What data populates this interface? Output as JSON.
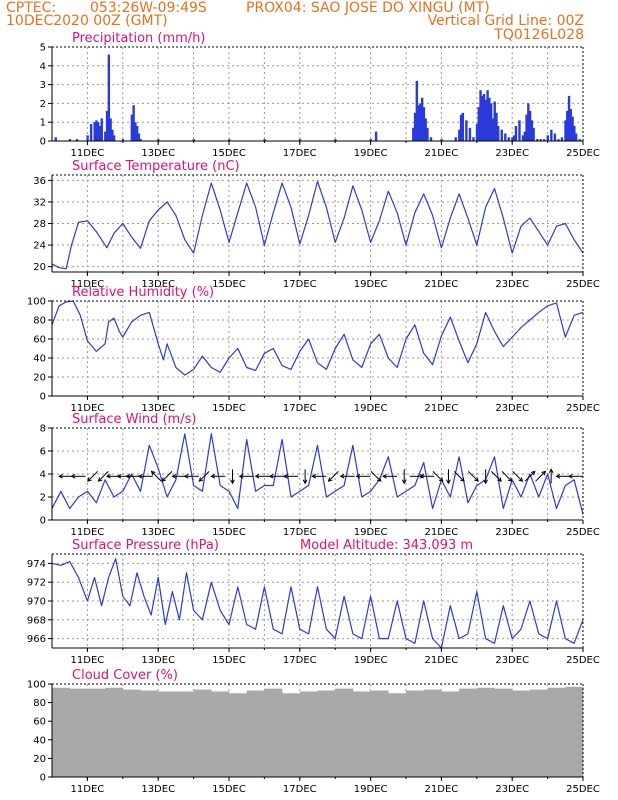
{
  "header": {
    "org": "CPTEC:",
    "coords": "053:26W-09:49S",
    "location": "PROX04: SAO JOSE DO XINGU (MT)",
    "date": "10DEC2020 00Z (GMT)",
    "grid_note": "Vertical Grid Line: 00Z",
    "model": "TQ0126L028"
  },
  "colors": {
    "header": "#e8701e",
    "title": "#e0107a",
    "line": "#2a3bd9",
    "bar": "#2a3bd9",
    "cloud": "#a9a9a9",
    "frame": "#000000",
    "grid": "#9a9a9a"
  },
  "x_axis": {
    "start_day": 10,
    "end_day": 25,
    "ticks": [
      {
        "day": 11,
        "label": "11DEC"
      },
      {
        "day": 13,
        "label": "13DEC"
      },
      {
        "day": 15,
        "label": "15DEC"
      },
      {
        "day": 17,
        "label": "17DEC"
      },
      {
        "day": 19,
        "label": "19DEC"
      },
      {
        "day": 21,
        "label": "21DEC"
      },
      {
        "day": 23,
        "label": "23DEC"
      },
      {
        "day": 25,
        "label": "25DEC"
      }
    ]
  },
  "chart_data": [
    {
      "type": "bar",
      "title": "Precipitation (mm/h)",
      "ylim": [
        0,
        5
      ],
      "yticks": [
        0,
        1,
        2,
        3,
        4,
        5
      ],
      "x": [
        10.1,
        10.5,
        10.7,
        11.0,
        11.1,
        11.2,
        11.25,
        11.3,
        11.35,
        11.4,
        11.5,
        11.55,
        11.6,
        11.65,
        11.7,
        11.75,
        12.0,
        12.25,
        12.3,
        12.35,
        12.4,
        12.45,
        12.5,
        13.0,
        14.0,
        15.0,
        16.0,
        17.0,
        18.0,
        19.0,
        19.15,
        20.2,
        20.25,
        20.3,
        20.35,
        20.4,
        20.45,
        20.5,
        20.55,
        20.6,
        20.7,
        21.0,
        21.4,
        21.5,
        21.55,
        21.6,
        21.7,
        21.8,
        21.9,
        22.0,
        22.05,
        22.1,
        22.15,
        22.2,
        22.25,
        22.3,
        22.35,
        22.4,
        22.45,
        22.5,
        22.55,
        22.6,
        22.7,
        22.8,
        22.9,
        23.0,
        23.05,
        23.1,
        23.2,
        23.3,
        23.35,
        23.4,
        23.45,
        23.5,
        23.55,
        23.6,
        23.7,
        23.8,
        23.9,
        24.0,
        24.1,
        24.2,
        24.3,
        24.4,
        24.5,
        24.55,
        24.6,
        24.65,
        24.7,
        24.75,
        24.8,
        24.9
      ],
      "values": [
        0.2,
        0.1,
        0.1,
        0.3,
        0.9,
        1.0,
        1.1,
        1.0,
        0.8,
        1.2,
        0.5,
        1.6,
        4.6,
        1.2,
        0.6,
        0.3,
        0.1,
        1.4,
        1.9,
        1.0,
        0.8,
        0.4,
        0.1,
        0.1,
        0.1,
        0.1,
        0.1,
        0.1,
        0.1,
        0.1,
        0.5,
        0.7,
        1.5,
        3.2,
        1.9,
        2.0,
        2.3,
        1.8,
        1.2,
        0.7,
        0.2,
        0.1,
        0.2,
        0.6,
        1.4,
        1.5,
        1.1,
        0.7,
        0.2,
        0.9,
        1.8,
        2.7,
        2.4,
        2.5,
        2.2,
        2.7,
        2.3,
        2.0,
        1.2,
        2.1,
        1.5,
        0.8,
        0.6,
        0.4,
        0.2,
        0.2,
        0.3,
        0.8,
        1.1,
        0.3,
        0.5,
        1.4,
        2.0,
        1.6,
        1.1,
        0.7,
        0.1,
        0.1,
        0.1,
        0.3,
        0.6,
        0.4,
        0.1,
        0.2,
        1.1,
        1.6,
        2.4,
        1.7,
        1.3,
        0.8,
        0.4,
        0.1
      ]
    },
    {
      "type": "line",
      "title": "Surface Temperature (nC)",
      "ylim": [
        19,
        37
      ],
      "yticks": [
        20,
        24,
        28,
        32,
        36
      ],
      "x": [
        10.0,
        10.2,
        10.4,
        10.55,
        10.75,
        11.0,
        11.25,
        11.55,
        11.75,
        12.0,
        12.25,
        12.5,
        12.75,
        13.0,
        13.25,
        13.5,
        13.75,
        14.0,
        14.25,
        14.5,
        14.75,
        15.0,
        15.25,
        15.5,
        15.75,
        16.0,
        16.25,
        16.5,
        16.75,
        17.0,
        17.25,
        17.5,
        17.75,
        18.0,
        18.25,
        18.5,
        18.75,
        19.0,
        19.25,
        19.5,
        19.75,
        20.0,
        20.25,
        20.5,
        20.75,
        21.0,
        21.25,
        21.5,
        21.75,
        22.0,
        22.25,
        22.5,
        22.75,
        23.0,
        23.25,
        23.5,
        23.75,
        24.0,
        24.25,
        24.5,
        24.75,
        25.0
      ],
      "values": [
        20.5,
        19.8,
        19.6,
        24,
        28.2,
        28.5,
        26.5,
        23.5,
        26.2,
        28.0,
        25.5,
        23.4,
        28.5,
        30.5,
        32.0,
        29.5,
        25.0,
        22.5,
        29.5,
        35.5,
        30.5,
        24.5,
        30.0,
        35.5,
        31.0,
        24.0,
        30.0,
        35.5,
        31.0,
        24.2,
        29.5,
        35.8,
        31.0,
        24.5,
        29.0,
        35.0,
        30.5,
        24.5,
        28.5,
        34.0,
        30.0,
        24.0,
        30.0,
        33.5,
        29.5,
        23.5,
        29.0,
        33.5,
        29.0,
        24.0,
        31.0,
        34.5,
        29.0,
        22.5,
        27.5,
        29.0,
        26.5,
        24.0,
        27.5,
        28.0,
        25.0,
        22.5
      ]
    },
    {
      "type": "line",
      "title": "Relative Humidity (%)",
      "ylim": [
        0,
        100
      ],
      "yticks": [
        0,
        20,
        40,
        60,
        80,
        100
      ],
      "x": [
        10.0,
        10.2,
        10.4,
        10.6,
        10.8,
        11.0,
        11.25,
        11.5,
        11.6,
        11.75,
        11.9,
        12.0,
        12.25,
        12.5,
        12.75,
        13.0,
        13.15,
        13.25,
        13.5,
        13.75,
        14.0,
        14.25,
        14.5,
        14.75,
        15.0,
        15.25,
        15.5,
        15.75,
        16.0,
        16.25,
        16.5,
        16.75,
        17.0,
        17.25,
        17.5,
        17.75,
        18.0,
        18.25,
        18.5,
        18.75,
        19.0,
        19.25,
        19.5,
        19.75,
        20.0,
        20.25,
        20.5,
        20.75,
        21.0,
        21.25,
        21.5,
        21.75,
        22.0,
        22.25,
        22.5,
        22.75,
        23.0,
        23.25,
        23.5,
        23.75,
        24.0,
        24.25,
        24.5,
        24.75,
        25.0
      ],
      "values": [
        75,
        95,
        99,
        100,
        85,
        58,
        47,
        55,
        78,
        82,
        68,
        62,
        78,
        85,
        88,
        55,
        38,
        55,
        30,
        22,
        28,
        42,
        30,
        25,
        40,
        50,
        30,
        27,
        45,
        50,
        32,
        28,
        47,
        60,
        35,
        28,
        50,
        65,
        38,
        30,
        55,
        65,
        40,
        30,
        60,
        75,
        45,
        33,
        63,
        83,
        58,
        35,
        55,
        88,
        68,
        52,
        62,
        72,
        80,
        88,
        95,
        98,
        62,
        85,
        88
      ]
    },
    {
      "type": "line",
      "title": "Surface Wind (m/s)",
      "ylim": [
        0,
        8
      ],
      "yticks": [
        0,
        2,
        4,
        6,
        8
      ],
      "x": [
        10.0,
        10.25,
        10.5,
        10.75,
        11.0,
        11.25,
        11.5,
        11.75,
        12.0,
        12.25,
        12.5,
        12.75,
        13.0,
        13.25,
        13.5,
        13.75,
        14.0,
        14.25,
        14.5,
        14.75,
        15.0,
        15.25,
        15.5,
        15.75,
        16.0,
        16.25,
        16.5,
        16.75,
        17.0,
        17.25,
        17.5,
        17.75,
        18.0,
        18.25,
        18.5,
        18.75,
        19.0,
        19.25,
        19.5,
        19.75,
        20.0,
        20.25,
        20.5,
        20.75,
        21.0,
        21.25,
        21.5,
        21.75,
        22.0,
        22.25,
        22.5,
        22.75,
        23.0,
        23.25,
        23.5,
        23.75,
        24.0,
        24.25,
        24.5,
        24.75,
        25.0
      ],
      "values": [
        1.0,
        2.5,
        1.0,
        2.0,
        2.5,
        1.5,
        3.5,
        2.0,
        2.5,
        4.0,
        2.5,
        6.5,
        4.5,
        2.0,
        3.5,
        7.5,
        3.0,
        2.5,
        7.5,
        3.0,
        2.5,
        1.0,
        7.0,
        2.5,
        3.0,
        3.0,
        7.0,
        2.0,
        2.5,
        3.0,
        6.5,
        2.0,
        2.5,
        3.0,
        6.5,
        2.0,
        2.5,
        3.5,
        5.5,
        2.0,
        2.5,
        3.0,
        5.0,
        1.0,
        3.5,
        2.0,
        5.5,
        1.5,
        3.0,
        3.5,
        5.5,
        1.0,
        3.5,
        2.0,
        4.0,
        2.0,
        4.0,
        1.0,
        3.0,
        3.5,
        0.5
      ],
      "arrows": [
        {
          "day": 10.4,
          "dir": "W"
        },
        {
          "day": 10.75,
          "dir": "W"
        },
        {
          "day": 11.15,
          "dir": "SW"
        },
        {
          "day": 11.45,
          "dir": "SW"
        },
        {
          "day": 11.75,
          "dir": "W"
        },
        {
          "day": 12.05,
          "dir": "W"
        },
        {
          "day": 12.3,
          "dir": "W"
        },
        {
          "day": 12.65,
          "dir": "W"
        },
        {
          "day": 12.95,
          "dir": "NW"
        },
        {
          "day": 13.25,
          "dir": "SW"
        },
        {
          "day": 13.6,
          "dir": "W"
        },
        {
          "day": 13.95,
          "dir": "W"
        },
        {
          "day": 14.3,
          "dir": "SW"
        },
        {
          "day": 14.7,
          "dir": "W"
        },
        {
          "day": 15.1,
          "dir": "S"
        },
        {
          "day": 15.5,
          "dir": "W"
        },
        {
          "day": 15.95,
          "dir": "W"
        },
        {
          "day": 16.35,
          "dir": "W"
        },
        {
          "day": 16.75,
          "dir": "W"
        },
        {
          "day": 17.15,
          "dir": "S"
        },
        {
          "day": 17.55,
          "dir": "W"
        },
        {
          "day": 17.95,
          "dir": "SW"
        },
        {
          "day": 18.35,
          "dir": "W"
        },
        {
          "day": 18.8,
          "dir": "W"
        },
        {
          "day": 19.15,
          "dir": "SE"
        },
        {
          "day": 19.55,
          "dir": "W"
        },
        {
          "day": 19.95,
          "dir": "S"
        },
        {
          "day": 20.3,
          "dir": "E"
        },
        {
          "day": 20.6,
          "dir": "W"
        },
        {
          "day": 20.9,
          "dir": "SE"
        },
        {
          "day": 21.2,
          "dir": "S"
        },
        {
          "day": 21.5,
          "dir": "SE"
        },
        {
          "day": 21.9,
          "dir": "SE"
        },
        {
          "day": 22.25,
          "dir": "S"
        },
        {
          "day": 22.55,
          "dir": "SE"
        },
        {
          "day": 22.85,
          "dir": "SE"
        },
        {
          "day": 23.15,
          "dir": "SE"
        },
        {
          "day": 23.5,
          "dir": "NE"
        },
        {
          "day": 23.8,
          "dir": "NE"
        },
        {
          "day": 24.1,
          "dir": "N"
        },
        {
          "day": 24.45,
          "dir": "W"
        },
        {
          "day": 24.8,
          "dir": "W"
        }
      ]
    },
    {
      "type": "line",
      "title": "Surface Pressure (hPa)",
      "subtitle": "Model Altitude: 343.093 m",
      "ylim": [
        965,
        975
      ],
      "yticks": [
        966,
        968,
        970,
        972,
        974
      ],
      "x": [
        10.0,
        10.25,
        10.5,
        10.75,
        11.0,
        11.2,
        11.4,
        11.6,
        11.8,
        12.0,
        12.2,
        12.4,
        12.6,
        12.8,
        13.0,
        13.2,
        13.4,
        13.6,
        13.8,
        14.0,
        14.25,
        14.5,
        14.75,
        15.0,
        15.25,
        15.5,
        15.75,
        16.0,
        16.25,
        16.5,
        16.75,
        17.0,
        17.25,
        17.5,
        17.75,
        18.0,
        18.25,
        18.5,
        18.75,
        19.0,
        19.25,
        19.5,
        19.75,
        20.0,
        20.25,
        20.5,
        20.75,
        21.0,
        21.25,
        21.5,
        21.75,
        22.0,
        22.25,
        22.5,
        22.75,
        23.0,
        23.25,
        23.5,
        23.75,
        24.0,
        24.25,
        24.5,
        24.75,
        25.0
      ],
      "values": [
        974.0,
        973.8,
        974.2,
        972.5,
        970.0,
        972.5,
        969.5,
        972.5,
        974.5,
        970.5,
        969.5,
        973.0,
        970.5,
        968.5,
        972.5,
        967.5,
        971.0,
        968.0,
        973.0,
        969.0,
        968.0,
        972.0,
        969.0,
        967.5,
        971.5,
        967.5,
        967.0,
        971.5,
        967.0,
        966.5,
        971.5,
        967.0,
        966.5,
        971.5,
        967.0,
        966.0,
        970.5,
        966.5,
        966.0,
        970.5,
        966.0,
        966.0,
        970.0,
        966.0,
        965.5,
        970.0,
        966.0,
        965.0,
        969.5,
        966.0,
        966.5,
        971.0,
        966.0,
        965.5,
        969.5,
        966.0,
        967.0,
        970.0,
        966.5,
        966.0,
        970.0,
        966.0,
        965.5,
        968.0
      ]
    },
    {
      "type": "bar",
      "title": "Cloud Cover (%)",
      "ylim": [
        0,
        100
      ],
      "yticks": [
        0,
        20,
        40,
        60,
        80,
        100
      ],
      "x": [
        10.0,
        10.5,
        11.0,
        11.5,
        12.0,
        12.5,
        13.0,
        13.5,
        14.0,
        14.5,
        15.0,
        15.5,
        16.0,
        16.5,
        17.0,
        17.5,
        18.0,
        18.5,
        19.0,
        19.5,
        20.0,
        20.5,
        21.0,
        21.5,
        22.0,
        22.5,
        23.0,
        23.5,
        24.0,
        24.5
      ],
      "values": [
        96,
        95,
        95,
        96,
        94,
        93,
        92,
        92,
        94,
        92,
        90,
        93,
        95,
        90,
        92,
        93,
        95,
        92,
        93,
        90,
        93,
        94,
        92,
        95,
        96,
        95,
        93,
        94,
        96,
        97
      ]
    }
  ]
}
